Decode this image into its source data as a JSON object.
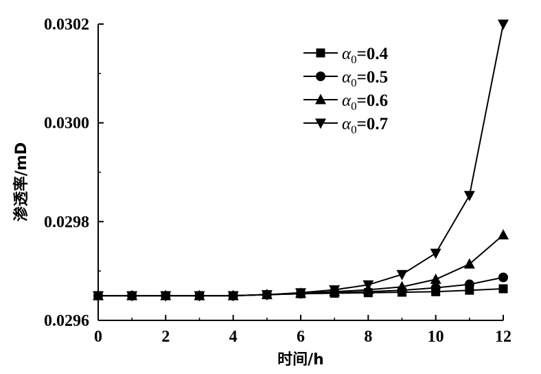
{
  "chart_data": {
    "type": "line",
    "xlabel": "时间/h",
    "ylabel": "渗透率/mD",
    "xlim": [
      0,
      12
    ],
    "ylim": [
      0.0296,
      0.0302
    ],
    "x_ticks": [
      "0",
      "2",
      "4",
      "6",
      "8",
      "10",
      "12"
    ],
    "y_ticks": [
      "0.0296",
      "0.0298",
      "0.0300",
      "0.0302"
    ],
    "grid": false,
    "legend_position": "top-right",
    "x": [
      0,
      1,
      2,
      3,
      4,
      5,
      6,
      7,
      8,
      9,
      10,
      11,
      12
    ],
    "series": [
      {
        "name": "α0=0.4",
        "symbol": "α",
        "subscript": "0",
        "value_text": "=0.4",
        "marker": "square",
        "values": [
          0.02965,
          0.02965,
          0.02965,
          0.02965,
          0.02965,
          0.029652,
          0.029654,
          0.029655,
          0.029656,
          0.029657,
          0.029658,
          0.029661,
          0.029664
        ]
      },
      {
        "name": "α0=0.5",
        "symbol": "α",
        "subscript": "0",
        "value_text": "=0.5",
        "marker": "circle",
        "values": [
          0.02965,
          0.02965,
          0.02965,
          0.02965,
          0.02965,
          0.029652,
          0.029654,
          0.029656,
          0.029658,
          0.029661,
          0.029666,
          0.029673,
          0.029687
        ]
      },
      {
        "name": "α0=0.6",
        "symbol": "α",
        "subscript": "0",
        "value_text": "=0.6",
        "marker": "triangle-up",
        "values": [
          0.02965,
          0.02965,
          0.02965,
          0.02965,
          0.02965,
          0.029652,
          0.029655,
          0.029658,
          0.029662,
          0.029668,
          0.029683,
          0.029714,
          0.029773
        ]
      },
      {
        "name": "α0=0.7",
        "symbol": "α",
        "subscript": "0",
        "value_text": "=0.7",
        "marker": "triangle-down",
        "values": [
          0.02965,
          0.02965,
          0.02965,
          0.02965,
          0.02965,
          0.029652,
          0.029656,
          0.029662,
          0.029672,
          0.029693,
          0.029736,
          0.029853,
          0.0302
        ]
      }
    ]
  }
}
